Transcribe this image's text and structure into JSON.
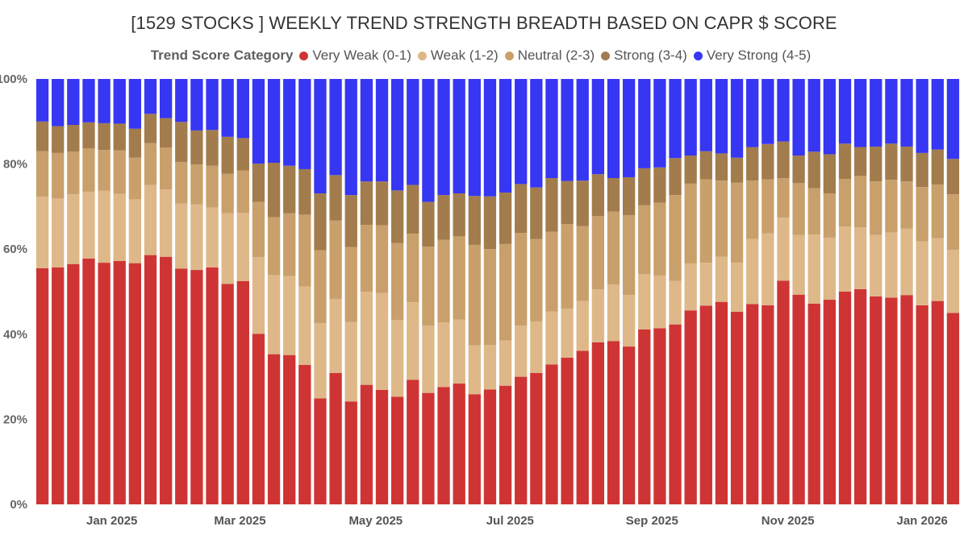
{
  "chart_data": {
    "type": "bar",
    "stacked": true,
    "normalized": true,
    "title": "[1529 STOCKS ] WEEKLY TREND STRENGTH BREADTH BASED ON CAPR $ SCORE",
    "legend": {
      "title": "Trend Score Category",
      "placement": "top-center",
      "entries": [
        {
          "name": "Very Weak (0-1)",
          "color": "#cf3434"
        },
        {
          "name": "Weak (1-2)",
          "color": "#deb888"
        },
        {
          "name": "Neutral (2-3)",
          "color": "#c9a06b"
        },
        {
          "name": "Strong (3-4)",
          "color": "#a27c4c"
        },
        {
          "name": "Very Strong (4-5)",
          "color": "#3636f3"
        }
      ]
    },
    "ylim": [
      0,
      100
    ],
    "yticks": [
      "0%",
      "20%",
      "40%",
      "60%",
      "80%",
      "100%"
    ],
    "ytick_values": [
      0,
      20,
      40,
      60,
      80,
      100
    ],
    "xticks": [
      {
        "label": "Jan 2025",
        "index": 4.5
      },
      {
        "label": "Mar 2025",
        "index": 12.8
      },
      {
        "label": "May 2025",
        "index": 21.6
      },
      {
        "label": "Jul 2025",
        "index": 30.3
      },
      {
        "label": "Sep 2025",
        "index": 39.5
      },
      {
        "label": "Nov 2025",
        "index": 48.3
      },
      {
        "label": "Jan 2026",
        "index": 57.0
      }
    ],
    "series": [
      {
        "name": "Very Weak (0-1)",
        "color": "#cf3434",
        "values": [
          55.5,
          55.7,
          56.5,
          57.8,
          56.8,
          57.2,
          56.7,
          58.6,
          58.2,
          55.4,
          55.1,
          55.7,
          51.8,
          52.5,
          40.1,
          35.3,
          35.1,
          32.8,
          24.9,
          30.9,
          24.2,
          28.1,
          26.9,
          25.3,
          29.3,
          26.2,
          27.6,
          28.4,
          25.9,
          27.0,
          27.9,
          30.0,
          30.9,
          32.9,
          34.5,
          36.1,
          38.1,
          38.4,
          37.1,
          41.1,
          41.4,
          42.3,
          45.6,
          46.7,
          47.6,
          45.3,
          47.1,
          46.8,
          52.6,
          49.3,
          47.2,
          48.1,
          50.0,
          50.6,
          48.9,
          48.6,
          49.2,
          46.8,
          47.8,
          45.0
        ]
      },
      {
        "name": "Weak (1-2)",
        "color": "#deb888",
        "values": [
          16.8,
          16.2,
          16.4,
          15.7,
          16.9,
          15.8,
          15.0,
          16.5,
          15.8,
          15.3,
          15.4,
          14.1,
          16.6,
          16.0,
          18.0,
          18.6,
          18.6,
          18.4,
          17.7,
          17.4,
          18.7,
          21.9,
          22.8,
          18.0,
          18.2,
          15.8,
          15.2,
          15.0,
          11.5,
          10.5,
          10.6,
          12.0,
          12.1,
          12.4,
          11.5,
          11.7,
          12.4,
          13.3,
          12.1,
          13.0,
          12.4,
          10.2,
          11.0,
          10.1,
          10.6,
          11.5,
          15.3,
          16.9,
          14.8,
          14.0,
          16.2,
          14.6,
          15.3,
          14.5,
          14.4,
          15.3,
          15.6,
          15.0,
          14.8,
          14.8
        ]
      },
      {
        "name": "Neutral (2-3)",
        "color": "#c9a06b",
        "values": [
          10.7,
          10.7,
          10.0,
          10.2,
          9.6,
          10.2,
          9.8,
          9.8,
          9.9,
          9.8,
          9.4,
          9.8,
          9.3,
          10.0,
          13.0,
          13.6,
          14.7,
          16.9,
          17.1,
          18.4,
          17.6,
          15.7,
          15.9,
          18.1,
          16.1,
          18.6,
          19.4,
          19.6,
          23.6,
          22.5,
          22.7,
          21.8,
          19.4,
          18.8,
          19.9,
          17.6,
          17.3,
          17.1,
          18.8,
          16.2,
          17.1,
          20.2,
          18.8,
          19.6,
          17.9,
          18.8,
          13.7,
          12.7,
          9.3,
          12.2,
          10.9,
          10.4,
          11.2,
          12.1,
          12.6,
          12.4,
          11.1,
          12.8,
          12.6,
          13.1
        ]
      },
      {
        "name": "Strong (3-4)",
        "color": "#a27c4c",
        "values": [
          7.0,
          6.3,
          6.3,
          6.1,
          6.3,
          6.3,
          6.8,
          6.9,
          6.9,
          9.4,
          8.0,
          8.4,
          8.7,
          7.6,
          9.0,
          12.8,
          11.2,
          10.7,
          13.4,
          10.7,
          12.2,
          10.2,
          10.3,
          12.4,
          11.5,
          10.5,
          10.5,
          10.1,
          11.5,
          12.4,
          12.1,
          11.5,
          12.1,
          12.6,
          10.1,
          10.7,
          9.8,
          7.9,
          8.9,
          8.7,
          8.3,
          8.7,
          6.6,
          6.6,
          6.4,
          5.9,
          7.9,
          8.3,
          8.6,
          6.5,
          8.6,
          9.2,
          8.3,
          6.8,
          8.2,
          8.5,
          8.2,
          8.0,
          8.2,
          8.3
        ]
      },
      {
        "name": "Very Strong (4-5)",
        "color": "#3636f3",
        "values": [
          10.0,
          11.1,
          10.8,
          10.2,
          10.4,
          10.5,
          11.7,
          8.2,
          9.2,
          10.1,
          12.1,
          12.0,
          13.6,
          13.9,
          19.9,
          19.7,
          20.4,
          21.2,
          26.9,
          22.6,
          27.3,
          24.1,
          24.1,
          26.2,
          24.9,
          28.9,
          27.3,
          26.9,
          27.5,
          27.6,
          26.7,
          24.7,
          25.5,
          23.3,
          24.0,
          23.9,
          22.4,
          23.3,
          23.1,
          21.0,
          20.8,
          18.6,
          18.0,
          17.0,
          17.5,
          18.5,
          16.0,
          15.3,
          14.7,
          18.0,
          17.1,
          17.7,
          15.2,
          16.0,
          15.9,
          15.2,
          15.9,
          17.4,
          16.6,
          18.8
        ]
      }
    ]
  }
}
